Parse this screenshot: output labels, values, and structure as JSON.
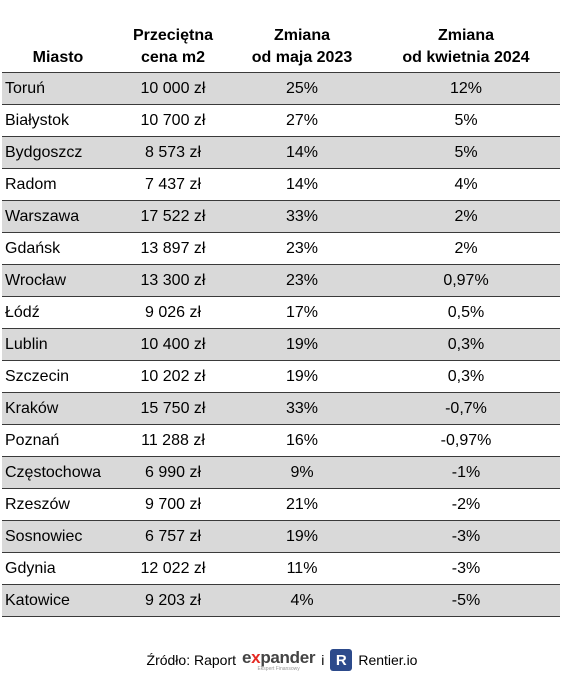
{
  "table": {
    "headers": {
      "city": "Miasto",
      "price_l1": "Przeciętna",
      "price_l2": "cena m2",
      "may_l1": "Zmiana",
      "may_l2": "od maja 2023",
      "april_l1": "Zmiana",
      "april_l2": "od kwietnia 2024"
    },
    "rows": [
      {
        "city": "Toruń",
        "price": "10 000 zł",
        "may": "25%",
        "april": "12%"
      },
      {
        "city": "Białystok",
        "price": "10 700 zł",
        "may": "27%",
        "april": "5%"
      },
      {
        "city": "Bydgoszcz",
        "price": "8 573 zł",
        "may": "14%",
        "april": "5%"
      },
      {
        "city": "Radom",
        "price": "7 437 zł",
        "may": "14%",
        "april": "4%"
      },
      {
        "city": "Warszawa",
        "price": "17 522 zł",
        "may": "33%",
        "april": "2%"
      },
      {
        "city": "Gdańsk",
        "price": "13 897 zł",
        "may": "23%",
        "april": "2%"
      },
      {
        "city": "Wrocław",
        "price": "13 300 zł",
        "may": "23%",
        "april": "0,97%"
      },
      {
        "city": "Łódź",
        "price": "9 026 zł",
        "may": "17%",
        "april": "0,5%"
      },
      {
        "city": "Lublin",
        "price": "10 400 zł",
        "may": "19%",
        "april": "0,3%"
      },
      {
        "city": "Szczecin",
        "price": "10 202 zł",
        "may": "19%",
        "april": "0,3%"
      },
      {
        "city": "Kraków",
        "price": "15 750 zł",
        "may": "33%",
        "april": "-0,7%"
      },
      {
        "city": "Poznań",
        "price": "11 288 zł",
        "may": "16%",
        "april": "-0,97%"
      },
      {
        "city": "Częstochowa",
        "price": "6 990 zł",
        "may": "9%",
        "april": "-1%"
      },
      {
        "city": "Rzeszów",
        "price": "9 700 zł",
        "may": "21%",
        "april": "-2%"
      },
      {
        "city": "Sosnowiec",
        "price": "6 757 zł",
        "may": "19%",
        "april": "-3%"
      },
      {
        "city": "Gdynia",
        "price": "12 022 zł",
        "may": "11%",
        "april": "-3%"
      },
      {
        "city": "Katowice",
        "price": "9 203 zł",
        "may": "4%",
        "april": "-5%"
      }
    ]
  },
  "source": {
    "prefix": "Źródło: Raport",
    "expander_brand_pre": "e",
    "expander_brand_x": "x",
    "expander_brand_post": "pander",
    "expander_tagline": "Ekspert Finansowy",
    "conjunction": "i",
    "rentier_logo_letter": "R",
    "rentier_name": "Rentier.io"
  },
  "colors": {
    "shade": "#d9d9d9",
    "expander_red": "#e52b24",
    "rentier_blue": "#2c4a8b"
  }
}
